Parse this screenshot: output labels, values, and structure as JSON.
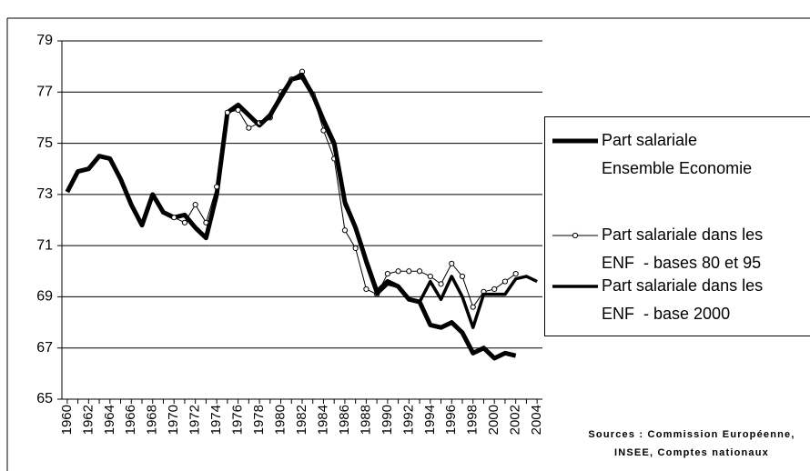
{
  "chart_data": {
    "type": "line",
    "x": [
      1960,
      1961,
      1962,
      1963,
      1964,
      1965,
      1966,
      1967,
      1968,
      1969,
      1970,
      1971,
      1972,
      1973,
      1974,
      1975,
      1976,
      1977,
      1978,
      1979,
      1980,
      1981,
      1982,
      1983,
      1984,
      1985,
      1986,
      1987,
      1988,
      1989,
      1990,
      1991,
      1992,
      1993,
      1994,
      1995,
      1996,
      1997,
      1998,
      1999,
      2000,
      2001,
      2002,
      2003,
      2004
    ],
    "xlim": [
      1959.5,
      2004.5
    ],
    "xticks": [
      1960,
      1962,
      1964,
      1966,
      1968,
      1970,
      1972,
      1974,
      1976,
      1978,
      1980,
      1982,
      1984,
      1986,
      1988,
      1990,
      1992,
      1994,
      1996,
      1998,
      2000,
      2002,
      2004
    ],
    "ylim": [
      65,
      79
    ],
    "yticks": [
      65,
      67,
      69,
      71,
      73,
      75,
      77,
      79
    ],
    "grid": true,
    "series": [
      {
        "name": "Part salariale\nEnsemble Economie",
        "color": "#000000",
        "width": 5,
        "marker": "none",
        "values": [
          73.1,
          73.9,
          74.0,
          74.5,
          74.4,
          73.6,
          72.6,
          71.8,
          73.0,
          72.3,
          72.1,
          72.2,
          71.7,
          71.3,
          73.0,
          76.2,
          76.5,
          76.1,
          75.7,
          76.1,
          76.8,
          77.5,
          77.6,
          76.9,
          75.9,
          75.0,
          72.7,
          71.7,
          70.4,
          69.2,
          69.6,
          69.4,
          68.9,
          68.8,
          67.9,
          67.8,
          68.0,
          67.6,
          66.8,
          67.0,
          66.6,
          66.8,
          66.7,
          null,
          null
        ]
      },
      {
        "name": "Part salariale dans les\nENF  - bases 80 et 95",
        "color": "#000000",
        "width": 1,
        "marker": "circle",
        "values": [
          null,
          null,
          null,
          null,
          null,
          null,
          null,
          null,
          null,
          null,
          72.1,
          71.9,
          72.6,
          71.9,
          73.3,
          76.2,
          76.3,
          75.6,
          75.8,
          76.0,
          77.0,
          77.5,
          77.8,
          76.9,
          75.5,
          74.4,
          71.6,
          70.9,
          69.3,
          69.1,
          69.9,
          70.0,
          70.0,
          70.0,
          69.8,
          69.5,
          70.3,
          69.8,
          68.6,
          69.2,
          69.3,
          69.6,
          69.9,
          null,
          null
        ]
      },
      {
        "name": "Part salariale dans les\nENF  - base 2000",
        "color": "#000000",
        "width": 3.5,
        "marker": "none",
        "values": [
          null,
          null,
          null,
          null,
          null,
          null,
          null,
          null,
          null,
          null,
          null,
          null,
          null,
          null,
          null,
          null,
          null,
          null,
          75.8,
          76.0,
          76.9,
          77.5,
          77.7,
          76.9,
          75.8,
          74.9,
          72.6,
          71.7,
          70.3,
          69.1,
          69.5,
          69.4,
          68.9,
          68.8,
          69.6,
          68.9,
          69.8,
          69.0,
          67.8,
          69.1,
          69.1,
          69.1,
          69.7,
          69.8,
          69.6
        ]
      }
    ],
    "source": "Sources : Commission Européenne,\nINSEE, Comptes nationaux"
  }
}
